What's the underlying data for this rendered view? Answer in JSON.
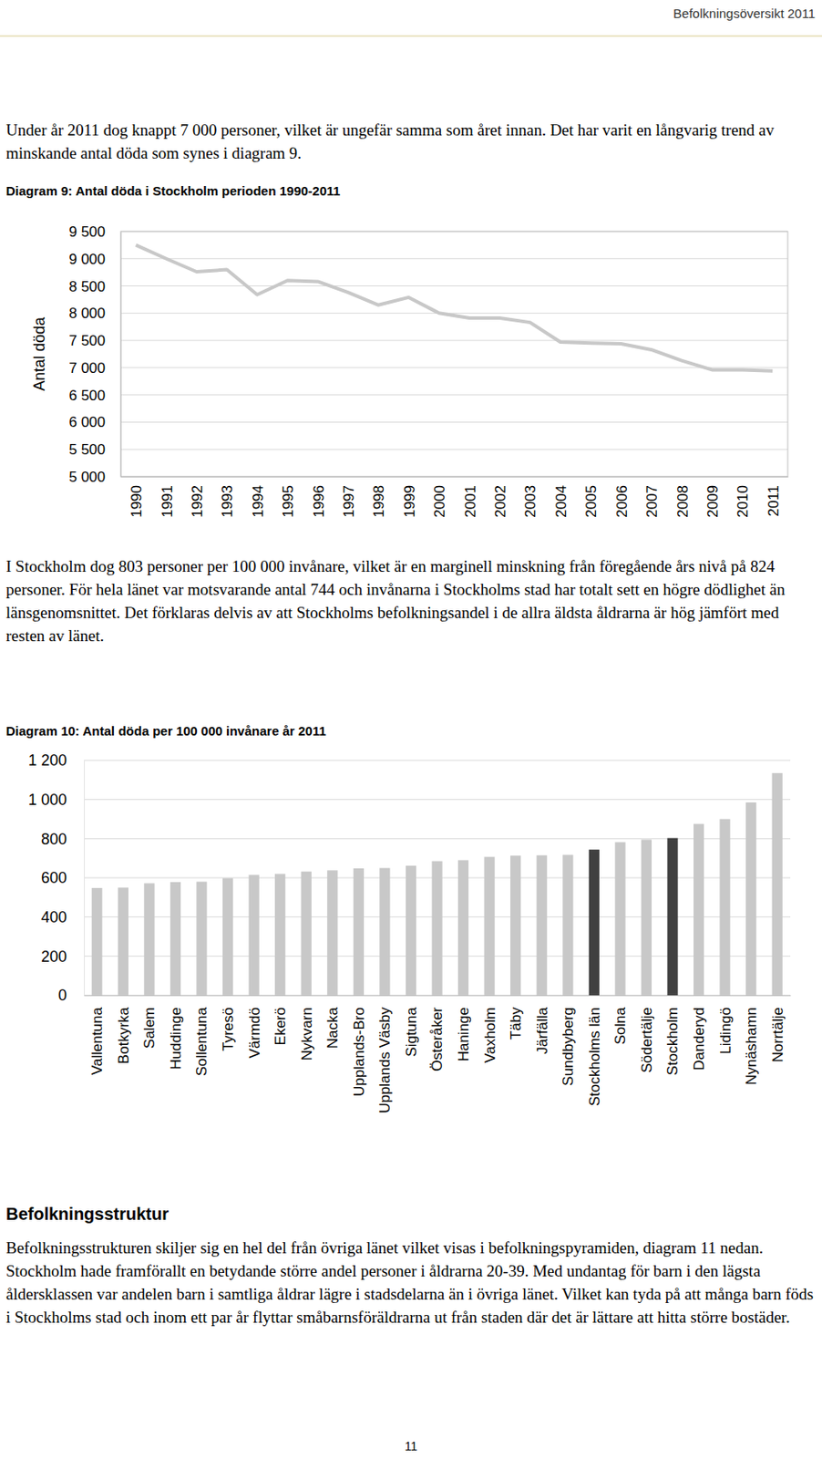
{
  "header": "Befolkningsöversikt 2011",
  "intro": "Under år 2011 dog knappt 7 000 personer, vilket är ungefär samma som året innan. Det har varit en långvarig trend av minskande antal döda som synes i diagram 9.",
  "chart_data": [
    {
      "type": "line",
      "title": "Diagram 9: Antal döda i Stockholm perioden 1990-2011",
      "y_label": "Antal döda",
      "categories": [
        "1990",
        "1991",
        "1992",
        "1993",
        "1994",
        "1995",
        "1996",
        "1997",
        "1998",
        "1999",
        "2000",
        "2001",
        "2002",
        "2003",
        "2004",
        "2005",
        "2006",
        "2007",
        "2008",
        "2009",
        "2010",
        "2011"
      ],
      "values": [
        9250,
        9000,
        8760,
        8800,
        8340,
        8600,
        8580,
        8380,
        8150,
        8290,
        8000,
        7910,
        7910,
        7830,
        7470,
        7450,
        7440,
        7330,
        7130,
        6960,
        6960,
        6940
      ],
      "color": "#c8c8c8",
      "ylim": [
        5000,
        9500
      ],
      "yticks": [
        {
          "value": 5000,
          "label": "5 000"
        },
        {
          "value": 5500,
          "label": "5 500"
        },
        {
          "value": 6000,
          "label": "6 000"
        },
        {
          "value": 6500,
          "label": "6 500"
        },
        {
          "value": 7000,
          "label": "7 000"
        },
        {
          "value": 7500,
          "label": "7 500"
        },
        {
          "value": 8000,
          "label": "8 000"
        },
        {
          "value": 8500,
          "label": "8 500"
        },
        {
          "value": 9000,
          "label": "9 000"
        },
        {
          "value": 9500,
          "label": "9 500"
        }
      ],
      "grid": true
    },
    {
      "type": "bar",
      "title": "Diagram 10: Antal döda per 100 000 invånare år 2011",
      "categories": [
        "Vallentuna",
        "Botkyrka",
        "Salem",
        "Huddinge",
        "Sollentuna",
        "Tyresö",
        "Värmdö",
        "Ekerö",
        "Nykvarn",
        "Nacka",
        "Upplands-Bro",
        "Upplands Väsby",
        "Sigtuna",
        "Österåker",
        "Haninge",
        "Vaxholm",
        "Täby",
        "Järfälla",
        "Sundbyberg",
        "Stockholms län",
        "Solna",
        "Södertälje",
        "Stockholm",
        "Danderyd",
        "Lidingö",
        "Nynäshamn",
        "Norrtälje"
      ],
      "values": [
        548,
        550,
        572,
        578,
        580,
        598,
        615,
        620,
        632,
        638,
        648,
        650,
        662,
        685,
        690,
        707,
        713,
        715,
        717,
        744,
        782,
        795,
        803,
        875,
        900,
        985,
        1135
      ],
      "colors": [
        "#c8c8c8",
        "#c8c8c8",
        "#c8c8c8",
        "#c8c8c8",
        "#c8c8c8",
        "#c8c8c8",
        "#c8c8c8",
        "#c8c8c8",
        "#c8c8c8",
        "#c8c8c8",
        "#c8c8c8",
        "#c8c8c8",
        "#c8c8c8",
        "#c8c8c8",
        "#c8c8c8",
        "#c8c8c8",
        "#c8c8c8",
        "#c8c8c8",
        "#c8c8c8",
        "#404040",
        "#c8c8c8",
        "#c8c8c8",
        "#404040",
        "#c8c8c8",
        "#c8c8c8",
        "#c8c8c8",
        "#c8c8c8"
      ],
      "ylim": [
        0,
        1200
      ],
      "yticks": [
        0,
        200,
        400,
        600,
        800,
        {
          "value": 1000,
          "label": "1 000"
        },
        {
          "value": 1200,
          "label": "1 200"
        }
      ],
      "grid": true
    }
  ],
  "between_text": "I Stockholm dog 803 personer per 100 000 invånare, vilket är en marginell minskning från föregående års nivå på 824 personer. För hela länet var motsvarande antal 744 och invånarna i Stockholms stad har totalt sett en högre dödlighet än länsgenomsnittet. Det förklaras delvis av att Stockholms befolkningsandel i de allra äldsta åldrarna är hög jämfört med resten av länet.",
  "section_heading": "Befolkningsstruktur",
  "section_text": "Befolkningsstrukturen skiljer sig en hel del från övriga länet vilket visas i befolkningspyramiden, diagram 11 nedan. Stockholm hade framförallt en betydande större andel personer i åldrarna 20-39.  Med undantag för barn i den lägsta åldersklassen var andelen barn i samtliga åldrar lägre i stadsdelarna än i övriga länet. Vilket kan tyda på att många barn föds i Stockholms stad och inom ett par år flyttar småbarnsföräldrarna ut från staden där det är lättare att hitta större bostäder.",
  "page_number": "11"
}
